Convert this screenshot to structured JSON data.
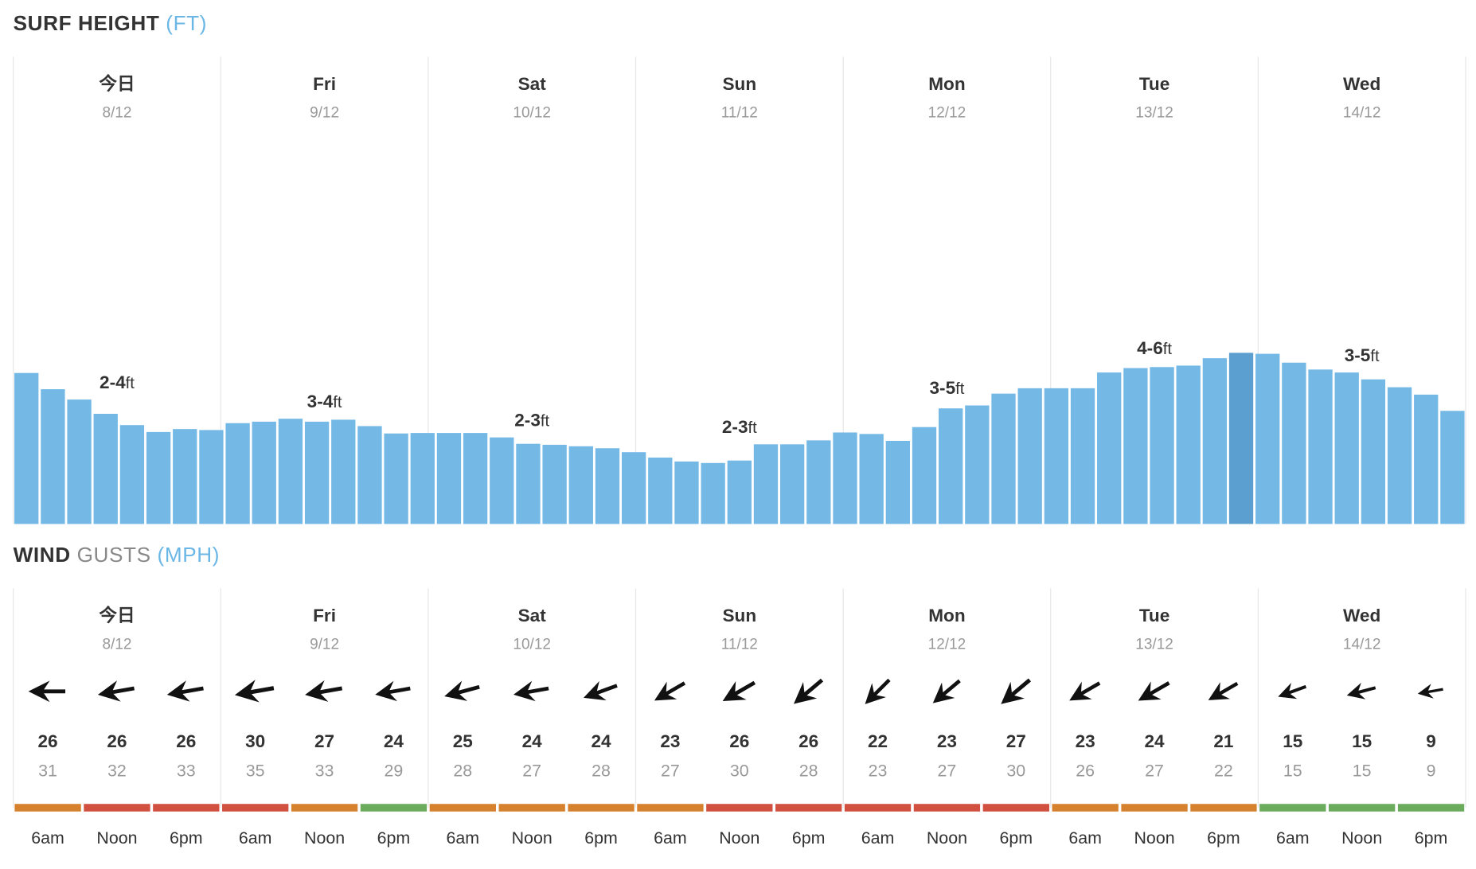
{
  "surf": {
    "title": "SURF HEIGHT",
    "unit": "(FT)"
  },
  "wind": {
    "title": "WIND",
    "subtitle": "GUSTS",
    "unit": "(MPH)"
  },
  "days": [
    {
      "name": "今日",
      "date": "8/12",
      "range": "2-4",
      "range_unit": "ft"
    },
    {
      "name": "Fri",
      "date": "9/12",
      "range": "3-4",
      "range_unit": "ft"
    },
    {
      "name": "Sat",
      "date": "10/12",
      "range": "2-3",
      "range_unit": "ft"
    },
    {
      "name": "Sun",
      "date": "11/12",
      "range": "2-3",
      "range_unit": "ft"
    },
    {
      "name": "Mon",
      "date": "12/12",
      "range": "3-5",
      "range_unit": "ft"
    },
    {
      "name": "Tue",
      "date": "13/12",
      "range": "4-6",
      "range_unit": "ft"
    },
    {
      "name": "Wed",
      "date": "14/12",
      "range": "3-5",
      "range_unit": "ft"
    }
  ],
  "colors": {
    "bar": "#74b9e6",
    "bar_highlight": "#5a9fd0",
    "orange": "#d6812e",
    "red": "#d1503f",
    "green": "#6aab5c"
  },
  "chart_data": [
    {
      "type": "bar",
      "title": "SURF HEIGHT (FT)",
      "ylim": [
        0,
        10
      ],
      "highlight_index": 46,
      "values": [
        3.07,
        2.74,
        2.53,
        2.24,
        2.01,
        1.87,
        1.93,
        1.91,
        2.05,
        2.08,
        2.14,
        2.08,
        2.12,
        1.99,
        1.84,
        1.85,
        1.85,
        1.85,
        1.76,
        1.63,
        1.61,
        1.58,
        1.54,
        1.46,
        1.35,
        1.27,
        1.24,
        1.29,
        1.62,
        1.62,
        1.7,
        1.86,
        1.83,
        1.69,
        1.97,
        2.35,
        2.41,
        2.65,
        2.76,
        2.76,
        2.76,
        3.08,
        3.17,
        3.19,
        3.22,
        3.37,
        3.48,
        3.46,
        3.28,
        3.14,
        3.08,
        2.94,
        2.78,
        2.63,
        2.3
      ]
    },
    {
      "type": "table",
      "title": "WIND GUSTS (MPH)",
      "columns": [
        "6am",
        "Noon",
        "6pm"
      ],
      "rows": [
        {
          "day": "今日",
          "speed": [
            26,
            26,
            26
          ],
          "gust": [
            31,
            32,
            33
          ],
          "rating": [
            "orange",
            "red",
            "red"
          ],
          "dir_deg": [
            90,
            80,
            80
          ]
        },
        {
          "day": "Fri",
          "speed": [
            30,
            27,
            24
          ],
          "gust": [
            35,
            33,
            29
          ],
          "rating": [
            "red",
            "orange",
            "green"
          ],
          "dir_deg": [
            80,
            80,
            80
          ]
        },
        {
          "day": "Sat",
          "speed": [
            25,
            24,
            24
          ],
          "gust": [
            28,
            27,
            28
          ],
          "rating": [
            "orange",
            "orange",
            "orange"
          ],
          "dir_deg": [
            75,
            80,
            70
          ]
        },
        {
          "day": "Sun",
          "speed": [
            23,
            26,
            26
          ],
          "gust": [
            27,
            30,
            28
          ],
          "rating": [
            "orange",
            "red",
            "red"
          ],
          "dir_deg": [
            60,
            60,
            50
          ]
        },
        {
          "day": "Mon",
          "speed": [
            22,
            23,
            27
          ],
          "gust": [
            23,
            27,
            30
          ],
          "rating": [
            "red",
            "red",
            "red"
          ],
          "dir_deg": [
            45,
            50,
            50
          ]
        },
        {
          "day": "Tue",
          "speed": [
            23,
            24,
            21
          ],
          "gust": [
            26,
            27,
            22
          ],
          "rating": [
            "orange",
            "orange",
            "orange"
          ],
          "dir_deg": [
            60,
            60,
            60
          ]
        },
        {
          "day": "Wed",
          "speed": [
            15,
            15,
            9
          ],
          "gust": [
            15,
            15,
            9
          ],
          "rating": [
            "green",
            "green",
            "green"
          ],
          "dir_deg": [
            70,
            75,
            80
          ]
        }
      ]
    }
  ]
}
